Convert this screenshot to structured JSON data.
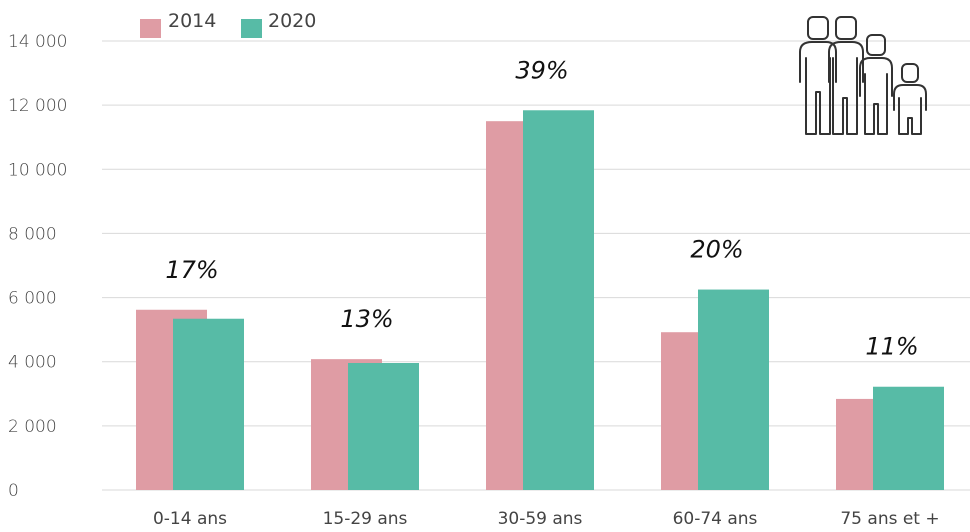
{
  "chart_data": {
    "type": "bar",
    "categories": [
      "0-14 ans",
      "15-29 ans",
      "30-59 ans",
      "60-74 ans",
      "75 ans et +"
    ],
    "series": [
      {
        "name": "2014",
        "color": "#df9ca4",
        "values": [
          5620,
          4080,
          11500,
          4920,
          2840
        ]
      },
      {
        "name": "2020",
        "color": "#57bba6",
        "values": [
          5340,
          3960,
          11840,
          6250,
          3220
        ]
      }
    ],
    "annotations": [
      "17%",
      "13%",
      "39%",
      "20%",
      "11%"
    ],
    "yticks": [
      "0",
      "2 000",
      "4 000",
      "6 000",
      "8 000",
      "10 000",
      "12 000",
      "14 000"
    ],
    "ylim": [
      0,
      14000
    ],
    "grid": true,
    "legend_position": "top-left",
    "icon": "family-icon"
  }
}
